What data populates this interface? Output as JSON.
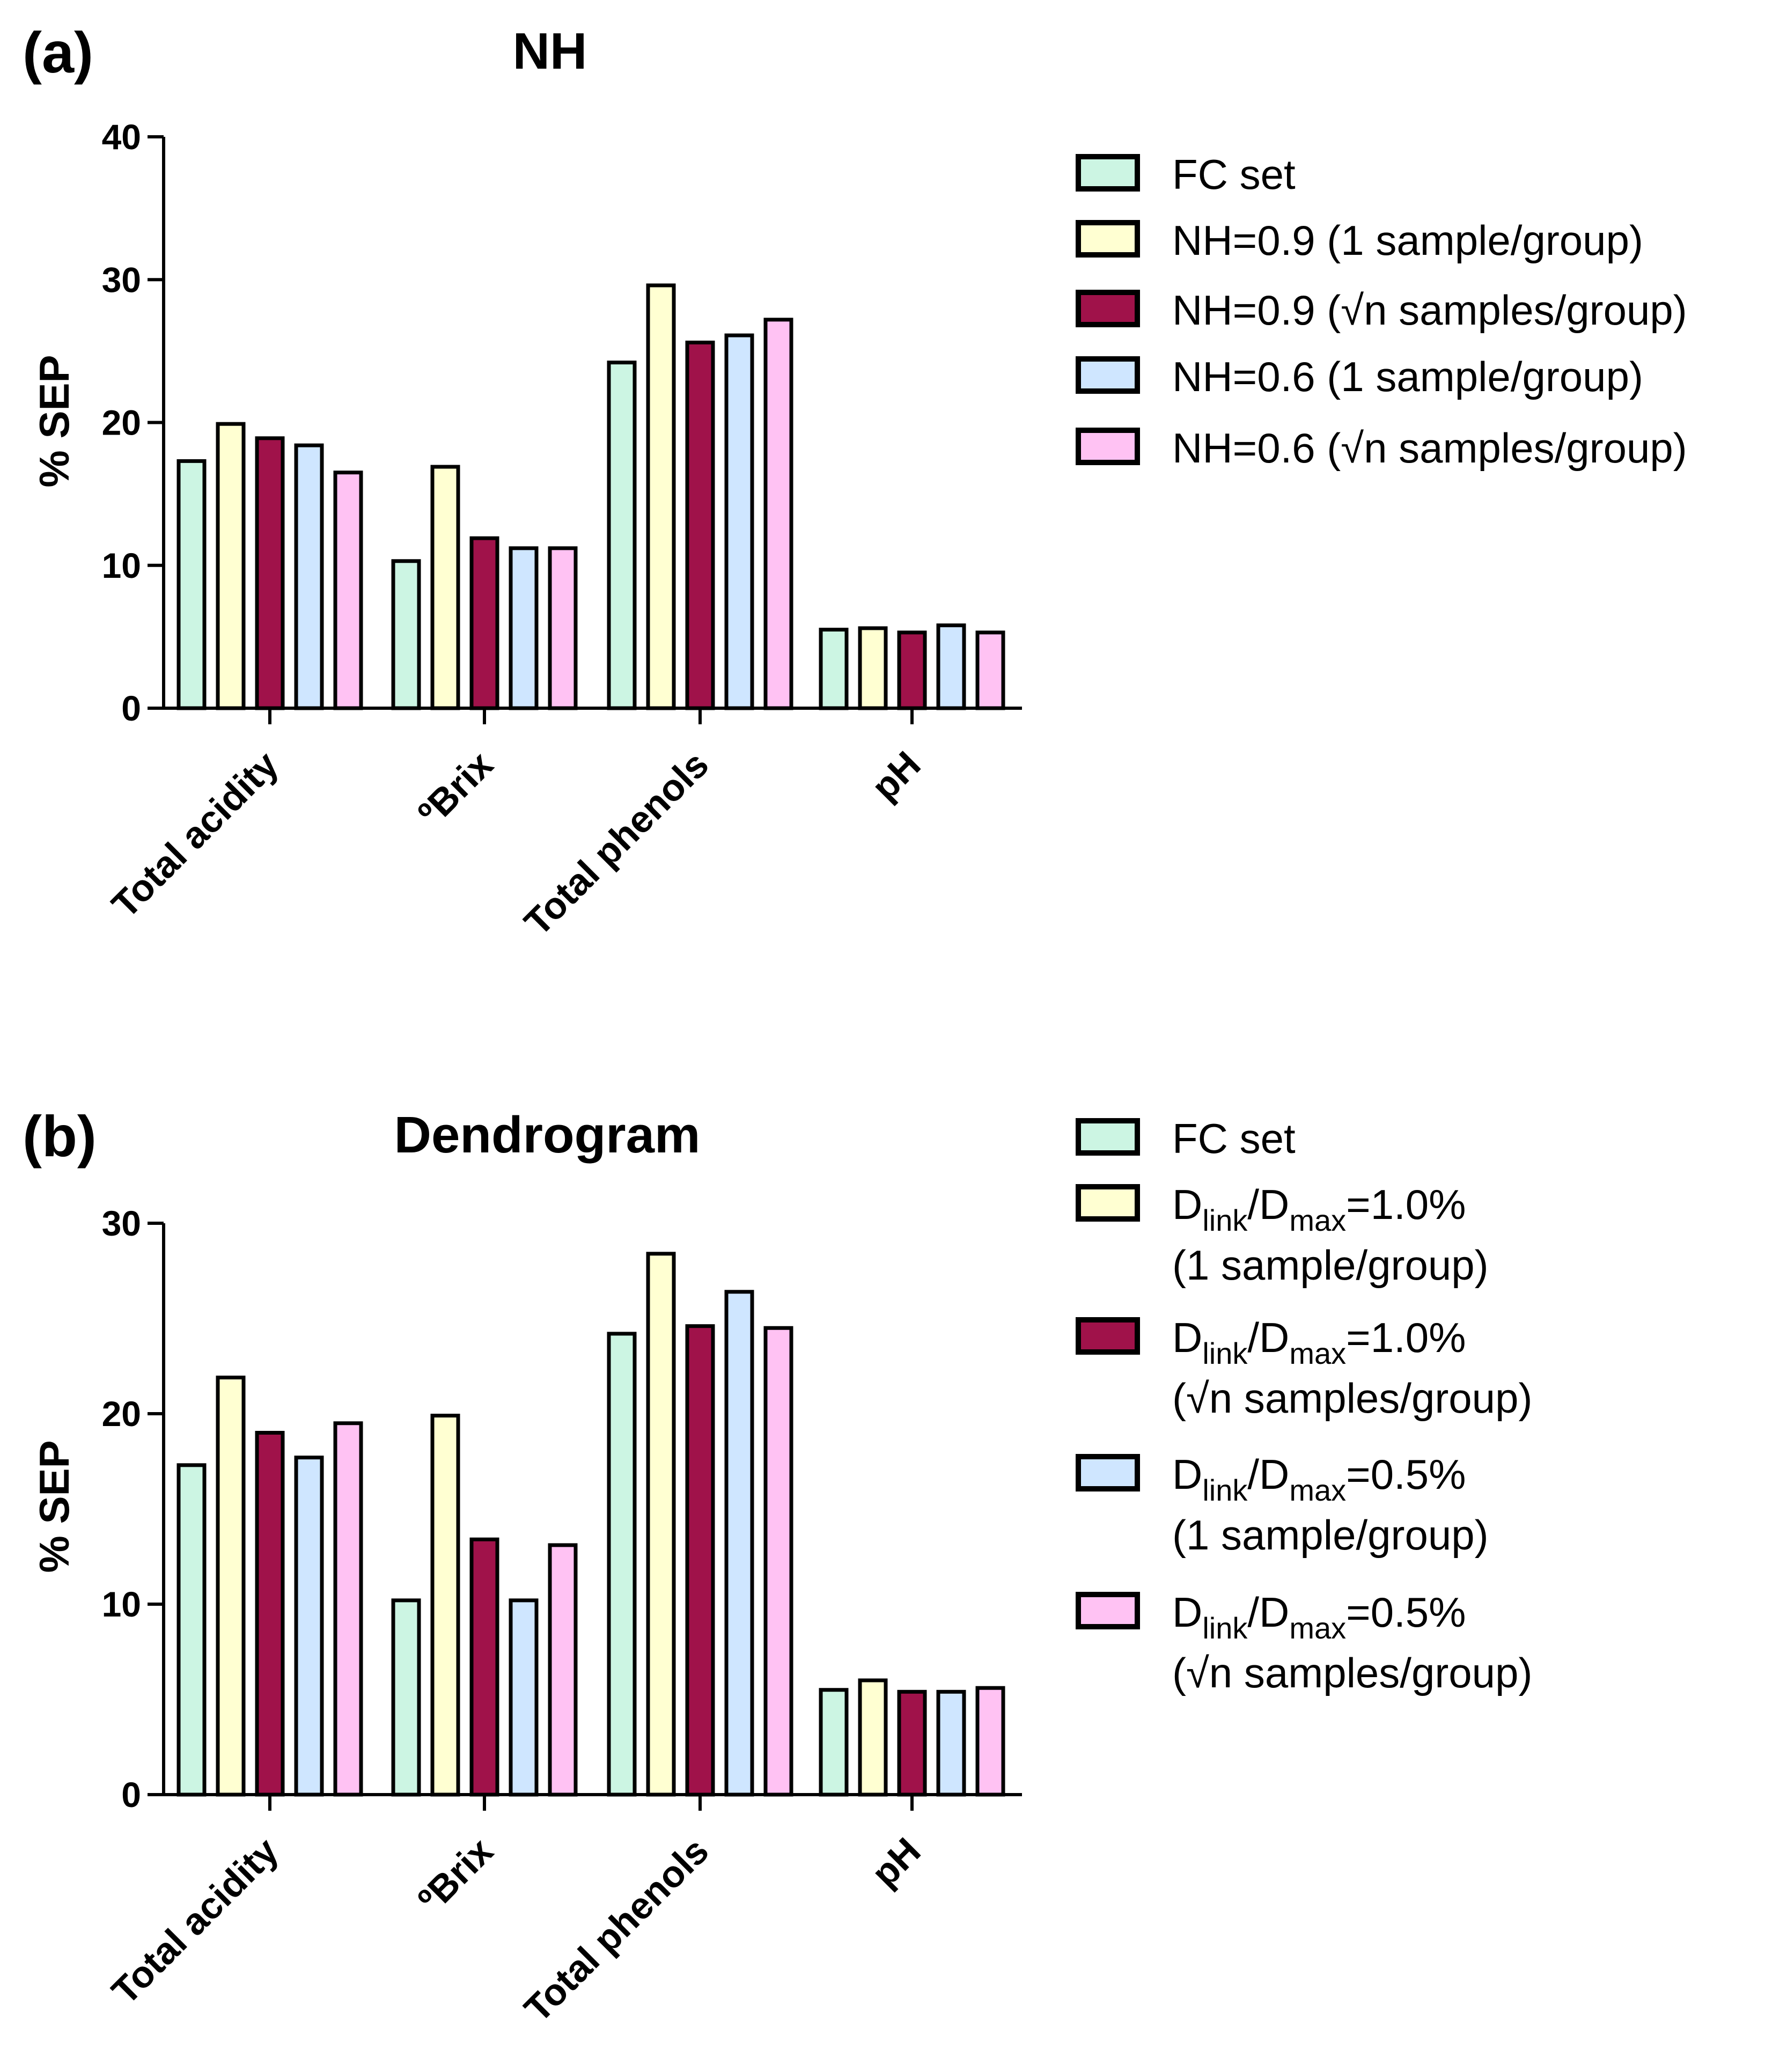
{
  "chart_data": [
    {
      "panel": "(a)",
      "title": "NH",
      "type": "bar",
      "ylabel": "% SEP",
      "xlabel": "",
      "ylim": [
        0,
        40
      ],
      "yticks": [
        0,
        10,
        20,
        30,
        40
      ],
      "categories": [
        "Total acidity",
        "ºBrix",
        "Total phenols",
        "pH"
      ],
      "legend_position": "right",
      "series": [
        {
          "name": "FC set",
          "color": "#ccf5e3",
          "values": [
            17.3,
            10.3,
            24.2,
            5.5
          ]
        },
        {
          "name": "NH=0.9 (1 sample/group)",
          "color": "#ffffd2",
          "values": [
            19.9,
            16.9,
            29.6,
            5.6
          ]
        },
        {
          "name": "NH=0.9 (√n samples/group)",
          "color": "#a0124a",
          "values": [
            18.9,
            11.9,
            25.6,
            5.3
          ]
        },
        {
          "name": "NH=0.6 (1 sample/group)",
          "color": "#cfe6ff",
          "values": [
            18.4,
            11.2,
            26.1,
            5.8
          ]
        },
        {
          "name": "NH=0.6 (√n samples/group)",
          "color": "#ffc2f3",
          "values": [
            16.5,
            11.2,
            27.2,
            5.3
          ]
        }
      ]
    },
    {
      "panel": "(b)",
      "title": "Dendrogram",
      "type": "bar",
      "ylabel": "% SEP",
      "xlabel": "",
      "ylim": [
        0,
        30
      ],
      "yticks": [
        0,
        10,
        20,
        30
      ],
      "categories": [
        "Total acidity",
        "ºBrix",
        "Total phenols",
        "pH"
      ],
      "legend_position": "right",
      "series": [
        {
          "name": "FC set",
          "color": "#ccf5e3",
          "values": [
            17.3,
            10.2,
            24.2,
            5.5
          ]
        },
        {
          "name": "Dlink/Dmax=1.0% (1 sample/group)",
          "color": "#ffffd2",
          "values": [
            21.9,
            19.9,
            28.4,
            6.0
          ]
        },
        {
          "name": "Dlink/Dmax=1.0% (√n samples/group)",
          "color": "#a0124a",
          "values": [
            19.0,
            13.4,
            24.6,
            5.4
          ]
        },
        {
          "name": "Dlink/Dmax=0.5% (1 sample/group)",
          "color": "#cfe6ff",
          "values": [
            17.7,
            10.2,
            26.4,
            5.4
          ]
        },
        {
          "name": "Dlink/Dmax=0.5% (√n samples/group)",
          "color": "#ffc2f3",
          "values": [
            19.5,
            13.1,
            24.5,
            5.6
          ]
        }
      ],
      "legend_rich": [
        {
          "d": "D",
          "link": "link",
          "slash": "/D",
          "max": "max",
          "value": "=1.0%",
          "line2": "(1 sample/group)"
        },
        {
          "d": "D",
          "link": "link",
          "slash": "/D",
          "max": "max",
          "value": "=1.0%",
          "line2": "(√n samples/group)"
        },
        {
          "d": "D",
          "link": "link",
          "slash": "/D",
          "max": "max",
          "value": "=0.5%",
          "line2": "(1 sample/group)"
        },
        {
          "d": "D",
          "link": "link",
          "slash": "/D",
          "max": "max",
          "value": "=0.5%",
          "line2": "(√n samples/group)"
        }
      ]
    }
  ]
}
